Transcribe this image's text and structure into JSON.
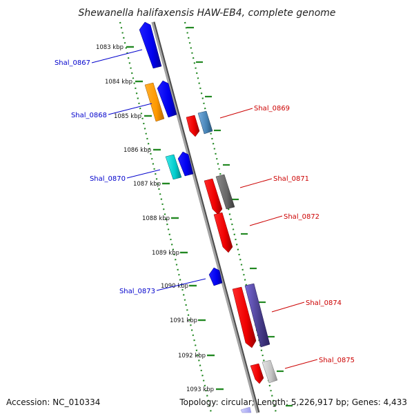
{
  "title": "Shewanella halifaxensis HAW-EB4, complete genome",
  "accession": "Accession: NC_010334",
  "topology": "Topology: circular; Length: 5,226,917 bp; Genes: 4,433",
  "colors": {
    "reverse_label": "#0000cc",
    "forward_label": "#cc0000",
    "tick": "#228822",
    "backbone": "#8c8c8c",
    "background": "#ffffff"
  },
  "ticks": [
    "1083 kbp",
    "1084 kbp",
    "1085 kbp",
    "1086 kbp",
    "1087 kbp",
    "1088 kbp",
    "1089 kbp",
    "1090 kbp",
    "1091 kbp",
    "1092 kbp",
    "1093 kbp"
  ],
  "genes": [
    {
      "label": "Shal_0867",
      "strand": "reverse"
    },
    {
      "label": "Shal_0868",
      "strand": "reverse"
    },
    {
      "label": "Shal_0869",
      "strand": "forward"
    },
    {
      "label": "Shal_0870",
      "strand": "reverse"
    },
    {
      "label": "Shal_0871",
      "strand": "forward"
    },
    {
      "label": "Shal_0872",
      "strand": "forward"
    },
    {
      "label": "Shal_0873",
      "strand": "reverse"
    },
    {
      "label": "Shal_0874",
      "strand": "forward"
    },
    {
      "label": "Shal_0875",
      "strand": "forward"
    }
  ]
}
